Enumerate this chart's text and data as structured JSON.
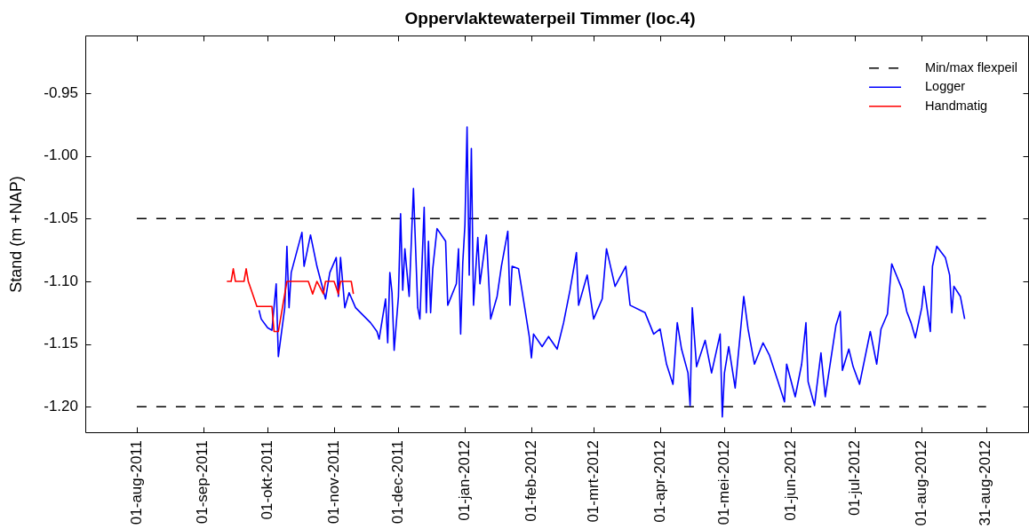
{
  "chart_data": {
    "type": "line",
    "title": "Oppervlaktewaterpeil Timmer (loc.4)",
    "ylabel": "Stand (m +NAP)",
    "xlim": [
      "2011-07-08",
      "2012-09-20"
    ],
    "xticks": [
      {
        "value": "2011-08-01",
        "label": "01-aug-2011"
      },
      {
        "value": "2011-09-01",
        "label": "01-sep-2011"
      },
      {
        "value": "2011-10-01",
        "label": "01-okt-2011"
      },
      {
        "value": "2011-11-01",
        "label": "01-nov-2011"
      },
      {
        "value": "2011-12-01",
        "label": "01-dec-2011"
      },
      {
        "value": "2012-01-01",
        "label": "01-jan-2012"
      },
      {
        "value": "2012-02-01",
        "label": "01-feb-2012"
      },
      {
        "value": "2012-03-01",
        "label": "01-mrt-2012"
      },
      {
        "value": "2012-04-01",
        "label": "01-apr-2012"
      },
      {
        "value": "2012-05-01",
        "label": "01-mei-2012"
      },
      {
        "value": "2012-06-01",
        "label": "01-jun-2012"
      },
      {
        "value": "2012-07-01",
        "label": "01-jul-2012"
      },
      {
        "value": "2012-08-01",
        "label": "01-aug-2012"
      },
      {
        "value": "2012-08-31",
        "label": "31-aug-2012"
      }
    ],
    "ylim": [
      -1.221,
      -0.904
    ],
    "yticks": [
      {
        "value": -1.2,
        "label": "-1.20"
      },
      -1.15,
      {
        "value": -1.1,
        "label": "-1.10"
      },
      -1.05,
      {
        "value": -1,
        "label": "-1.00"
      },
      -0.95
    ],
    "legend": "top right",
    "series": [
      {
        "name": "Min/max flexpeil",
        "line_style": "dashed",
        "color": "#000000",
        "x": [
          "2011-08-01",
          "2012-08-31"
        ],
        "values": [
          -1.05,
          -1.05
        ]
      },
      {
        "line_style": "dashed",
        "color": "#000000",
        "x": [
          "2011-08-01",
          "2012-08-31"
        ],
        "values": [
          -1.2,
          -1.2
        ]
      },
      {
        "name": "Logger",
        "color": "#0000ff",
        "x": [
          "2011-09-27",
          "2011-09-28",
          "2011-10-01",
          "2011-10-03",
          "2011-10-05",
          "2011-10-06",
          "2011-10-09",
          "2011-10-10",
          "2011-10-11",
          "2011-10-12",
          "2011-10-17",
          "2011-10-18",
          "2011-10-21",
          "2011-10-24",
          "2011-10-28",
          "2011-10-30",
          "2011-11-02",
          "2011-11-03",
          "2011-11-04",
          "2011-11-06",
          "2011-11-08",
          "2011-11-11",
          "2011-11-18",
          "2011-11-21",
          "2011-11-22",
          "2011-11-25",
          "2011-11-26",
          "2011-11-27",
          "2011-11-28",
          "2011-11-29",
          "2011-12-01",
          "2011-12-02",
          "2011-12-03",
          "2011-12-04",
          "2011-12-06",
          "2011-12-08",
          "2011-12-10",
          "2011-12-11",
          "2011-12-13",
          "2011-12-14",
          "2011-12-15",
          "2011-12-16",
          "2011-12-17",
          "2011-12-19",
          "2011-12-23",
          "2011-12-24",
          "2011-12-28",
          "2011-12-29",
          "2011-12-30",
          "2011-12-31",
          "2012-01-01",
          "2012-01-02",
          "2012-01-03",
          "2012-01-04",
          "2012-01-05",
          "2012-01-07",
          "2012-01-08",
          "2012-01-11",
          "2012-01-13",
          "2012-01-16",
          "2012-01-18",
          "2012-01-21",
          "2012-01-22",
          "2012-01-23",
          "2012-01-26",
          "2012-01-31",
          "2012-02-01",
          "2012-02-02",
          "2012-02-06",
          "2012-02-09",
          "2012-02-13",
          "2012-02-16",
          "2012-02-19",
          "2012-02-22",
          "2012-02-23",
          "2012-02-27",
          "2012-03-01",
          "2012-03-05",
          "2012-03-07",
          "2012-03-11",
          "2012-03-16",
          "2012-03-18",
          "2012-03-25",
          "2012-03-29",
          "2012-04-01",
          "2012-04-04",
          "2012-04-07",
          "2012-04-09",
          "2012-04-11",
          "2012-04-14",
          "2012-04-15",
          "2012-04-16",
          "2012-04-18",
          "2012-04-22",
          "2012-04-25",
          "2012-04-29",
          "2012-04-30",
          "2012-05-01",
          "2012-05-03",
          "2012-05-06",
          "2012-05-10",
          "2012-05-12",
          "2012-05-15",
          "2012-05-19",
          "2012-05-22",
          "2012-05-26",
          "2012-05-29",
          "2012-05-30",
          "2012-06-03",
          "2012-06-06",
          "2012-06-08",
          "2012-06-09",
          "2012-06-12",
          "2012-06-15",
          "2012-06-17",
          "2012-06-22",
          "2012-06-24",
          "2012-06-25",
          "2012-06-28",
          "2012-06-30",
          "2012-07-03",
          "2012-07-08",
          "2012-07-11",
          "2012-07-13",
          "2012-07-16",
          "2012-07-18",
          "2012-07-23",
          "2012-07-25",
          "2012-07-27",
          "2012-07-29",
          "2012-08-01",
          "2012-08-02",
          "2012-08-05",
          "2012-08-06",
          "2012-08-08",
          "2012-08-12",
          "2012-08-14",
          "2012-08-15",
          "2012-08-16",
          "2012-08-19",
          "2012-08-21"
        ],
        "values": [
          -1.123,
          -1.13,
          -1.137,
          -1.139,
          -1.102,
          -1.16,
          -1.121,
          -1.072,
          -1.121,
          -1.093,
          -1.061,
          -1.088,
          -1.063,
          -1.088,
          -1.114,
          -1.093,
          -1.081,
          -1.112,
          -1.081,
          -1.121,
          -1.109,
          -1.121,
          -1.133,
          -1.14,
          -1.146,
          -1.114,
          -1.149,
          -1.093,
          -1.109,
          -1.155,
          -1.112,
          -1.046,
          -1.107,
          -1.074,
          -1.112,
          -1.026,
          -1.121,
          -1.13,
          -1.041,
          -1.125,
          -1.068,
          -1.125,
          -1.09,
          -1.058,
          -1.068,
          -1.119,
          -1.102,
          -1.074,
          -1.142,
          -1.085,
          -1.055,
          -0.977,
          -1.095,
          -0.994,
          -1.119,
          -1.065,
          -1.102,
          -1.063,
          -1.13,
          -1.112,
          -1.088,
          -1.06,
          -1.119,
          -1.088,
          -1.09,
          -1.144,
          -1.161,
          -1.142,
          -1.152,
          -1.144,
          -1.154,
          -1.133,
          -1.107,
          -1.077,
          -1.119,
          -1.095,
          -1.13,
          -1.114,
          -1.074,
          -1.104,
          -1.088,
          -1.119,
          -1.125,
          -1.142,
          -1.138,
          -1.166,
          -1.182,
          -1.133,
          -1.154,
          -1.173,
          -1.199,
          -1.121,
          -1.168,
          -1.147,
          -1.173,
          -1.142,
          -1.208,
          -1.173,
          -1.152,
          -1.185,
          -1.112,
          -1.138,
          -1.166,
          -1.149,
          -1.159,
          -1.18,
          -1.196,
          -1.166,
          -1.192,
          -1.166,
          -1.133,
          -1.18,
          -1.199,
          -1.157,
          -1.192,
          -1.135,
          -1.124,
          -1.171,
          -1.154,
          -1.168,
          -1.182,
          -1.14,
          -1.166,
          -1.138,
          -1.126,
          -1.086,
          -1.107,
          -1.124,
          -1.133,
          -1.145,
          -1.121,
          -1.104,
          -1.14,
          -1.088,
          -1.072,
          -1.081,
          -1.095,
          -1.125,
          -1.104,
          -1.112,
          -1.13
        ]
      },
      {
        "name": "Handmatig",
        "color": "#ff0000",
        "x": [
          "2011-09-12",
          "2011-09-14",
          "2011-09-15",
          "2011-09-16",
          "2011-09-20",
          "2011-09-21",
          "2011-09-22",
          "2011-09-26",
          "2011-10-03",
          "2011-10-04",
          "2011-10-06",
          "2011-10-10",
          "2011-10-20",
          "2011-10-22",
          "2011-10-24",
          "2011-10-27",
          "2011-10-28",
          "2011-11-01",
          "2011-11-03",
          "2011-11-04",
          "2011-11-09",
          "2011-11-10"
        ],
        "values": [
          -1.1,
          -1.1,
          -1.09,
          -1.1,
          -1.1,
          -1.09,
          -1.1,
          -1.12,
          -1.12,
          -1.14,
          -1.14,
          -1.1,
          -1.1,
          -1.11,
          -1.1,
          -1.11,
          -1.1,
          -1.1,
          -1.11,
          -1.1,
          -1.1,
          -1.11
        ]
      }
    ]
  }
}
